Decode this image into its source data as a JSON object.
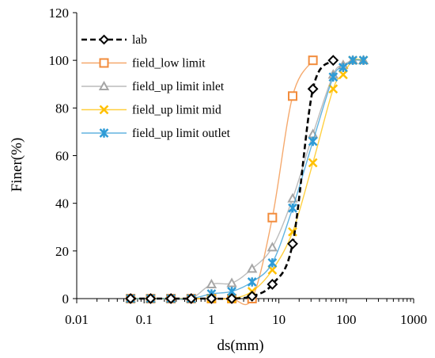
{
  "chart_data": {
    "type": "scatter",
    "title": "",
    "xlabel": "ds(mm)",
    "ylabel": "Finer(%)",
    "xscale": "log",
    "xlim": [
      0.01,
      1000
    ],
    "ylim": [
      0,
      120
    ],
    "xticks": [
      0.01,
      0.1,
      1,
      10,
      100,
      1000
    ],
    "xtick_labels": [
      "0.01",
      "0.1",
      "1",
      "10",
      "100",
      "1000"
    ],
    "yticks": [
      0,
      20,
      40,
      60,
      80,
      100,
      120
    ],
    "ytick_labels": [
      "0",
      "20",
      "40",
      "60",
      "80",
      "100",
      "120"
    ],
    "grid": false,
    "legend_position": "top-left",
    "series": [
      {
        "name": "lab",
        "color": "#000000",
        "line": "dashed",
        "marker": "diamond",
        "x": [
          0.063,
          0.125,
          0.25,
          0.5,
          1,
          2,
          4,
          8,
          16,
          32,
          64
        ],
        "y": [
          0,
          0,
          0,
          0,
          0,
          0,
          1,
          6,
          23,
          88,
          100
        ]
      },
      {
        "name": "field_low limit",
        "color": "#F28C3C",
        "line": "solid",
        "marker": "square",
        "x": [
          0.063,
          0.125,
          0.25,
          0.5,
          1,
          2,
          4,
          8,
          16,
          32
        ],
        "y": [
          0,
          0,
          0,
          0,
          0,
          0,
          0,
          34,
          85,
          100
        ]
      },
      {
        "name": "field_up limit inlet",
        "color": "#A6A6A6",
        "line": "solid",
        "marker": "triangle",
        "x": [
          0.063,
          0.125,
          0.25,
          0.5,
          1,
          2,
          4,
          8,
          16,
          32,
          64,
          90,
          125,
          180
        ],
        "y": [
          0,
          0,
          0,
          0,
          6,
          6.5,
          12.5,
          21.5,
          42,
          69,
          94,
          98,
          100,
          100
        ]
      },
      {
        "name": "field_up limit mid",
        "color": "#FFC000",
        "line": "solid",
        "marker": "x",
        "x": [
          0.063,
          0.125,
          0.25,
          0.5,
          1,
          2,
          4,
          8,
          16,
          32,
          64,
          90,
          125,
          180
        ],
        "y": [
          0,
          0,
          0,
          0,
          0,
          0,
          3,
          12,
          28,
          57,
          88,
          94,
          100,
          100
        ]
      },
      {
        "name": "field_up limit outlet",
        "color": "#2E9BD6",
        "line": "solid",
        "marker": "asterisk",
        "x": [
          0.063,
          0.125,
          0.25,
          0.5,
          1,
          2,
          4,
          8,
          16,
          32,
          64,
          90,
          125,
          180
        ],
        "y": [
          0,
          0,
          0,
          0,
          2,
          3,
          7,
          15,
          38,
          66,
          93,
          97,
          100,
          100
        ]
      }
    ]
  }
}
